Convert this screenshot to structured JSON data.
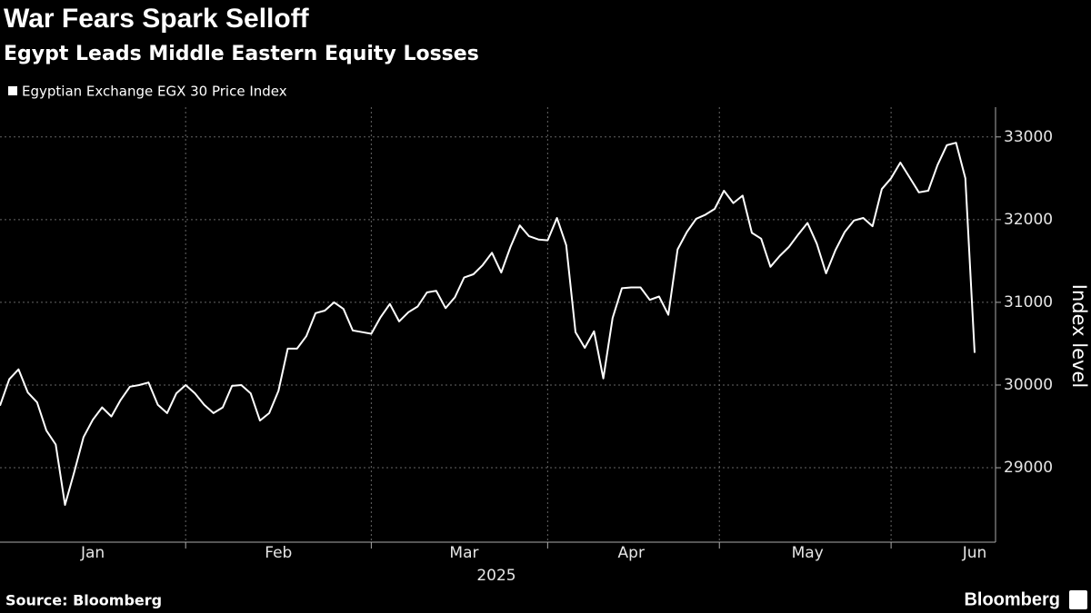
{
  "chart_data": {
    "type": "line",
    "title": "War Fears Spark Selloff",
    "subtitle": "Egypt Leads Middle Eastern Equity Losses",
    "ylabel": "Index level",
    "xlabel": "2025",
    "source": "Source: Bloomberg",
    "brand": "Bloomberg",
    "legend": "top-left",
    "grid": true,
    "categories": [
      null,
      null,
      null,
      null,
      null,
      null,
      null,
      null,
      null,
      null,
      "Jan",
      null,
      null,
      null,
      null,
      null,
      null,
      null,
      null,
      null,
      null,
      null,
      null,
      null,
      null,
      null,
      null,
      null,
      null,
      null,
      "Feb",
      null,
      null,
      null,
      null,
      null,
      null,
      null,
      null,
      null,
      null,
      null,
      null,
      null,
      null,
      null,
      null,
      null,
      null,
      null,
      "Mar",
      null,
      null,
      null,
      null,
      null,
      null,
      null,
      null,
      null,
      null,
      null,
      null,
      null,
      null,
      null,
      null,
      null,
      "Apr",
      null,
      null,
      null,
      null,
      null,
      null,
      null,
      null,
      null,
      null,
      null,
      null,
      null,
      null,
      null,
      null,
      null,
      null,
      "May",
      null,
      null,
      null,
      null,
      null,
      null,
      null,
      null,
      null,
      null,
      null,
      null,
      null,
      null,
      null,
      null,
      null,
      "Jun"
    ],
    "series": [
      {
        "name": "Egyptian Exchange EGX 30 Price Index",
        "color": "#ffffff",
        "values": [
          29750,
          30070,
          30190,
          29910,
          29790,
          29450,
          29280,
          28550,
          28950,
          29370,
          29580,
          29730,
          29620,
          29820,
          29980,
          30000,
          30030,
          29760,
          29660,
          29900,
          30000,
          29900,
          29760,
          29660,
          29730,
          29990,
          30000,
          29900,
          29570,
          29660,
          29930,
          30440,
          30440,
          30590,
          30870,
          30900,
          31000,
          30920,
          30660,
          30640,
          30620,
          30820,
          30980,
          30770,
          30880,
          30950,
          31120,
          31140,
          30930,
          31060,
          31300,
          31340,
          31450,
          31600,
          31360,
          31670,
          31930,
          31800,
          31760,
          31750,
          32020,
          31690,
          30640,
          30450,
          30650,
          30080,
          30810,
          31170,
          31180,
          31180,
          31030,
          31070,
          30850,
          31640,
          31850,
          32010,
          32060,
          32130,
          32350,
          32200,
          32290,
          31840,
          31770,
          31430,
          31560,
          31670,
          31820,
          31960,
          31710,
          31350,
          31630,
          31850,
          31990,
          32020,
          31920,
          32370,
          32500,
          32690,
          32510,
          32330,
          32350,
          32660,
          32900,
          32930,
          32500,
          30390
        ]
      }
    ],
    "ylim": [
      28100,
      33360
    ],
    "yticks": [
      29000,
      30000,
      31000,
      32000,
      33000
    ]
  }
}
